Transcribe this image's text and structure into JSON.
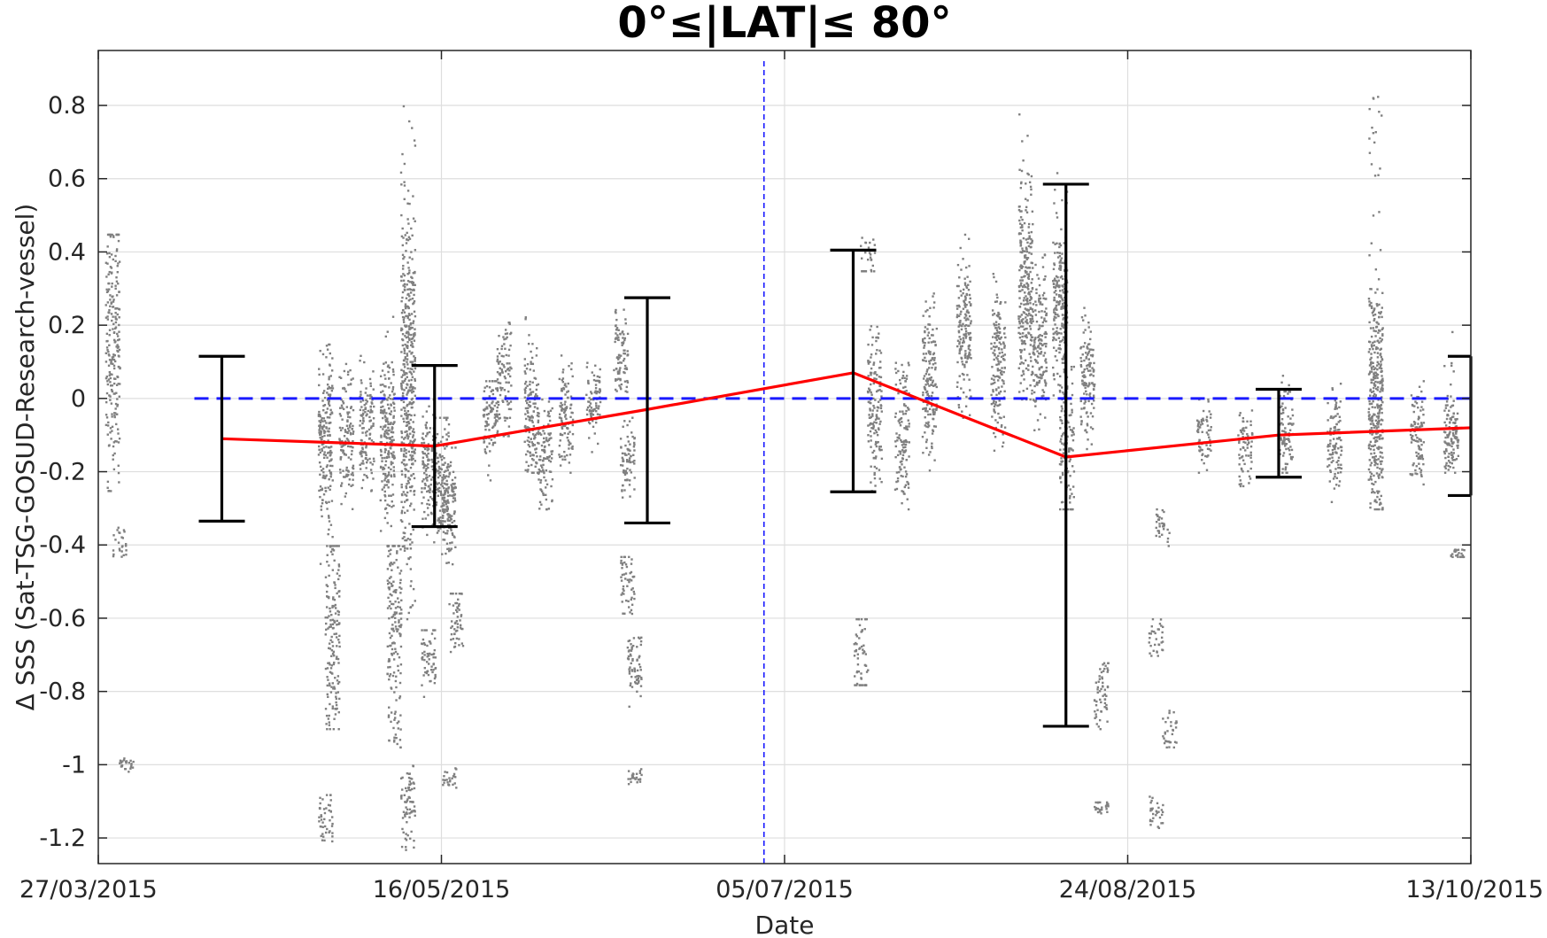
{
  "chart_data": {
    "type": "scatter",
    "title": "0°≤|LAT|≤ 80°",
    "xlabel": "Date",
    "ylabel": "Δ SSS (Sat-TSG-GOSUD-Research-vessel)",
    "x_start": "27/03/2015",
    "x_end": "13/10/2015",
    "ylim": [
      -1.27,
      0.95
    ],
    "grid": true,
    "x_ticks": [
      "27/03/2015",
      "16/05/2015",
      "05/07/2015",
      "24/08/2015",
      "13/10/2015"
    ],
    "y_ticks": [
      0.8,
      0.6,
      0.4,
      0.2,
      0,
      -0.2,
      -0.4,
      -0.6,
      -0.8,
      -1,
      -1.2
    ],
    "y_tick_labels": [
      "0.8",
      "0.6",
      "0.4",
      "0.2",
      "0",
      "-0.2",
      "-0.4",
      "-0.6",
      "-0.8",
      "-1",
      "-1.2"
    ],
    "reference_line": {
      "y": 0,
      "style": "dashed",
      "color": "#1a1aff"
    },
    "vertical_marker": {
      "date": "02/07/2015",
      "style": "dashed",
      "color": "#1a1aff"
    },
    "scatter_color": "#808080",
    "scatter_clusters": [
      {
        "date": "29/03/2015",
        "center": 0.15,
        "spread": 0.18,
        "min": -0.25,
        "max": 0.45
      },
      {
        "date": "30/03/2015",
        "center": -0.38,
        "spread": 0.02,
        "min": -0.43,
        "max": -0.35
      },
      {
        "date": "31/03/2015",
        "center": -1.0,
        "spread": 0.01,
        "min": -1.02,
        "max": -0.98
      },
      {
        "date": "29/04/2015",
        "center": -0.1,
        "spread": 0.12,
        "min": -0.45,
        "max": 0.15
      },
      {
        "date": "30/04/2015",
        "center": -0.65,
        "spread": 0.15,
        "min": -0.9,
        "max": -0.4
      },
      {
        "date": "29/04/2015",
        "center": -1.15,
        "spread": 0.04,
        "min": -1.22,
        "max": -1.08
      },
      {
        "date": "02/05/2015",
        "center": -0.1,
        "spread": 0.08,
        "min": -0.3,
        "max": 0.1
      },
      {
        "date": "05/05/2015",
        "center": -0.08,
        "spread": 0.08,
        "min": -0.25,
        "max": 0.15
      },
      {
        "date": "08/05/2015",
        "center": -0.1,
        "spread": 0.1,
        "min": -0.4,
        "max": 0.3
      },
      {
        "date": "09/05/2015",
        "center": -0.6,
        "spread": 0.15,
        "min": -0.95,
        "max": -0.4
      },
      {
        "date": "11/05/2015",
        "center": 0.05,
        "spread": 0.25,
        "min": -0.6,
        "max": 0.85
      },
      {
        "date": "11/05/2015",
        "center": -1.1,
        "spread": 0.06,
        "min": -1.23,
        "max": -1.0
      },
      {
        "date": "14/05/2015",
        "center": -0.18,
        "spread": 0.08,
        "min": -0.4,
        "max": 0.0
      },
      {
        "date": "16/05/2015",
        "center": -0.22,
        "spread": 0.08,
        "min": -0.45,
        "max": -0.05
      },
      {
        "date": "14/05/2015",
        "center": -0.7,
        "spread": 0.05,
        "min": -0.82,
        "max": -0.63
      },
      {
        "date": "17/05/2015",
        "center": -0.28,
        "spread": 0.07,
        "min": -0.45,
        "max": -0.1
      },
      {
        "date": "18/05/2015",
        "center": -0.6,
        "spread": 0.05,
        "min": -0.7,
        "max": -0.53
      },
      {
        "date": "17/05/2015",
        "center": -1.03,
        "spread": 0.02,
        "min": -1.06,
        "max": -0.99
      },
      {
        "date": "23/05/2015",
        "center": -0.05,
        "spread": 0.06,
        "min": -0.25,
        "max": 0.05
      },
      {
        "date": "25/05/2015",
        "center": 0.05,
        "spread": 0.08,
        "min": -0.1,
        "max": 0.21
      },
      {
        "date": "29/05/2015",
        "center": -0.05,
        "spread": 0.08,
        "min": -0.2,
        "max": 0.25
      },
      {
        "date": "31/05/2015",
        "center": -0.15,
        "spread": 0.07,
        "min": -0.3,
        "max": 0.0
      },
      {
        "date": "03/06/2015",
        "center": -0.05,
        "spread": 0.08,
        "min": -0.2,
        "max": 0.12
      },
      {
        "date": "07/06/2015",
        "center": 0.0,
        "spread": 0.06,
        "min": -0.15,
        "max": 0.1
      },
      {
        "date": "11/06/2015",
        "center": 0.12,
        "spread": 0.06,
        "min": 0.0,
        "max": 0.28
      },
      {
        "date": "12/06/2015",
        "center": -0.15,
        "spread": 0.06,
        "min": -0.28,
        "max": -0.05
      },
      {
        "date": "12/06/2015",
        "center": -0.5,
        "spread": 0.05,
        "min": -0.6,
        "max": -0.43
      },
      {
        "date": "13/06/2015",
        "center": -0.72,
        "spread": 0.05,
        "min": -0.85,
        "max": -0.65
      },
      {
        "date": "13/06/2015",
        "center": -1.03,
        "spread": 0.01,
        "min": -1.05,
        "max": -1.0
      },
      {
        "date": "17/07/2015",
        "center": 0.38,
        "spread": 0.04,
        "min": 0.35,
        "max": 0.45
      },
      {
        "date": "18/07/2015",
        "center": 0.0,
        "spread": 0.1,
        "min": -0.25,
        "max": 0.2
      },
      {
        "date": "22/07/2015",
        "center": -0.1,
        "spread": 0.1,
        "min": -0.3,
        "max": 0.1
      },
      {
        "date": "26/07/2015",
        "center": 0.05,
        "spread": 0.1,
        "min": -0.2,
        "max": 0.3
      },
      {
        "date": "31/07/2015",
        "center": 0.2,
        "spread": 0.1,
        "min": -0.05,
        "max": 0.45
      },
      {
        "date": "05/08/2015",
        "center": 0.1,
        "spread": 0.1,
        "min": -0.15,
        "max": 0.35
      },
      {
        "date": "09/08/2015",
        "center": 0.3,
        "spread": 0.15,
        "min": 0.0,
        "max": 0.83
      },
      {
        "date": "11/08/2015",
        "center": 0.15,
        "spread": 0.1,
        "min": -0.1,
        "max": 0.4
      },
      {
        "date": "14/08/2015",
        "center": 0.25,
        "spread": 0.1,
        "min": 0.0,
        "max": 0.67
      },
      {
        "date": "15/08/2015",
        "center": -0.1,
        "spread": 0.1,
        "min": -0.3,
        "max": 0.1
      },
      {
        "date": "18/08/2015",
        "center": 0.05,
        "spread": 0.08,
        "min": -0.15,
        "max": 0.25
      },
      {
        "date": "16/07/2015",
        "center": -0.7,
        "spread": 0.08,
        "min": -0.78,
        "max": -0.6
      },
      {
        "date": "20/08/2015",
        "center": -0.8,
        "spread": 0.05,
        "min": -0.9,
        "max": -0.72
      },
      {
        "date": "20/08/2015",
        "center": -1.11,
        "spread": 0.01,
        "min": -1.13,
        "max": -1.1
      },
      {
        "date": "29/08/2015",
        "center": -0.35,
        "spread": 0.03,
        "min": -0.4,
        "max": -0.3
      },
      {
        "date": "28/08/2015",
        "center": -0.65,
        "spread": 0.04,
        "min": -0.7,
        "max": -0.6
      },
      {
        "date": "30/08/2015",
        "center": -0.9,
        "spread": 0.04,
        "min": -0.95,
        "max": -0.85
      },
      {
        "date": "28/08/2015",
        "center": -1.13,
        "spread": 0.03,
        "min": -1.17,
        "max": -1.08
      },
      {
        "date": "04/09/2015",
        "center": -0.1,
        "spread": 0.05,
        "min": -0.2,
        "max": 0.0
      },
      {
        "date": "10/09/2015",
        "center": -0.12,
        "spread": 0.05,
        "min": -0.25,
        "max": -0.03
      },
      {
        "date": "16/09/2015",
        "center": -0.08,
        "spread": 0.06,
        "min": -0.2,
        "max": 0.08
      },
      {
        "date": "23/09/2015",
        "center": -0.12,
        "spread": 0.06,
        "min": -0.28,
        "max": 0.05
      },
      {
        "date": "29/09/2015",
        "center": 0.0,
        "spread": 0.15,
        "min": -0.3,
        "max": 0.85
      },
      {
        "date": "05/10/2015",
        "center": -0.1,
        "spread": 0.07,
        "min": -0.25,
        "max": 0.05
      },
      {
        "date": "10/10/2015",
        "center": -0.1,
        "spread": 0.05,
        "min": -0.2,
        "max": 0.21
      },
      {
        "date": "11/10/2015",
        "center": -0.42,
        "spread": 0.01,
        "min": -0.43,
        "max": -0.41
      }
    ],
    "series": [
      {
        "type": "line",
        "color": "#ff0000",
        "points": [
          {
            "date": "14/04/2015",
            "y": -0.11
          },
          {
            "date": "15/05/2015",
            "y": -0.13
          },
          {
            "date": "15/06/2015",
            "y": -0.03
          },
          {
            "date": "15/07/2015",
            "y": 0.07
          },
          {
            "date": "15/08/2015",
            "y": -0.16
          },
          {
            "date": "15/09/2015",
            "y": -0.1
          },
          {
            "date": "13/10/2015",
            "y": -0.08
          }
        ]
      }
    ],
    "error_bars": [
      {
        "date": "14/04/2015",
        "low": -0.335,
        "high": 0.115
      },
      {
        "date": "15/05/2015",
        "low": -0.35,
        "high": 0.09
      },
      {
        "date": "15/06/2015",
        "low": -0.34,
        "high": 0.275
      },
      {
        "date": "15/07/2015",
        "low": -0.255,
        "high": 0.405
      },
      {
        "date": "15/08/2015",
        "low": -0.895,
        "high": 0.585
      },
      {
        "date": "15/09/2015",
        "low": -0.215,
        "high": 0.025
      },
      {
        "date": "13/10/2015",
        "low": -0.265,
        "high": 0.115
      }
    ]
  }
}
